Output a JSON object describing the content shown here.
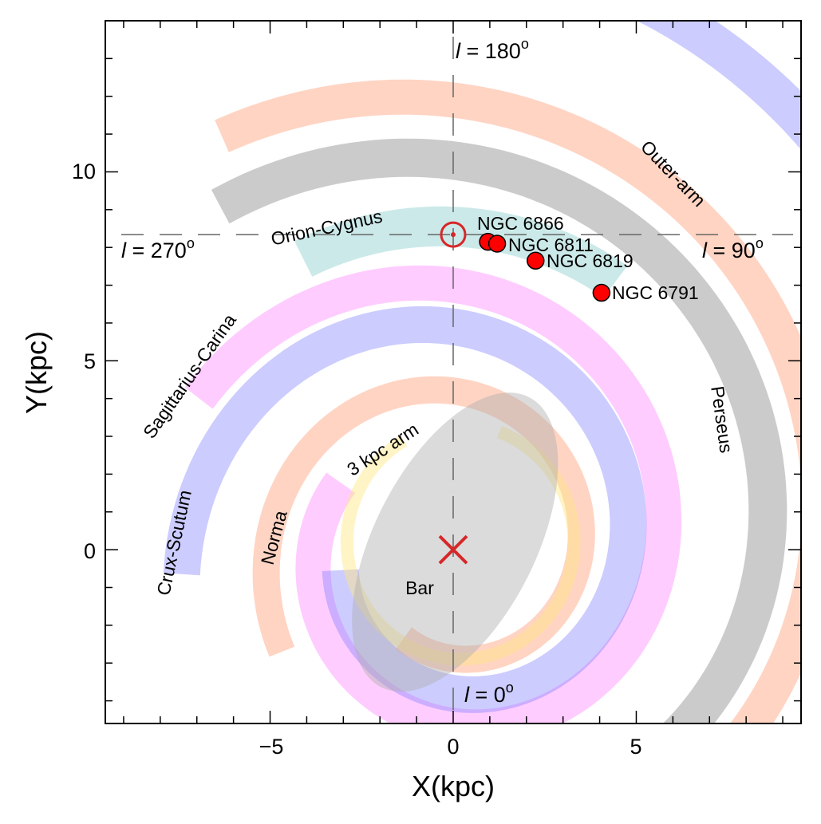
{
  "chart_data": {
    "type": "scatter",
    "xlabel": "X(kpc)",
    "ylabel": "Y(kpc)",
    "xlim": [
      -9.5,
      9.5
    ],
    "ylim": [
      -4.6,
      14.0
    ],
    "x_ticks": [
      {
        "value": -5,
        "label": "−5"
      },
      {
        "value": 0,
        "label": "0"
      },
      {
        "value": 5,
        "label": "5"
      }
    ],
    "y_ticks": [
      {
        "value": 0,
        "label": "0"
      },
      {
        "value": 5,
        "label": "5"
      },
      {
        "value": 10,
        "label": "10"
      }
    ],
    "sun": {
      "x": 0.0,
      "y": 8.34
    },
    "galactic_center": {
      "x": 0.0,
      "y": 0.0
    },
    "clusters": [
      {
        "name": "NGC 6866",
        "x": 0.95,
        "y": 8.15
      },
      {
        "name": "NGC 6811",
        "x": 1.2,
        "y": 8.1
      },
      {
        "name": "NGC 6819",
        "x": 2.25,
        "y": 7.65
      },
      {
        "name": "NGC 6791",
        "x": 4.05,
        "y": 6.8
      }
    ],
    "longitude_labels": [
      {
        "symbol": "l",
        "value": " = 180",
        "degree": "o"
      },
      {
        "symbol": "l",
        "value": " = 270",
        "degree": "o"
      },
      {
        "symbol": "l",
        "value": " = 90",
        "degree": "o"
      },
      {
        "symbol": "l",
        "value": " = 0",
        "degree": "o"
      }
    ],
    "arms": [
      {
        "name": "Outer-arm",
        "color": "#ffa07a",
        "opacity": 0.45
      },
      {
        "name": "Perseus",
        "color": "#a0a0a0",
        "opacity": 0.55
      },
      {
        "name": "Orion-Cygnus",
        "color": "#8fcfcf",
        "opacity": 0.45
      },
      {
        "name": "Sagittarius-Carina",
        "color": "#ff80ff",
        "opacity": 0.4
      },
      {
        "name": "Crux-Scutum",
        "color": "#8080ff",
        "opacity": 0.4
      },
      {
        "name": "Norma",
        "color": "#ffa07a",
        "opacity": 0.45
      },
      {
        "name": "3 kpc arm",
        "color": "#ffe680",
        "opacity": 0.45
      }
    ],
    "bar": {
      "name": "Bar",
      "color": "#b0b0b0"
    }
  }
}
